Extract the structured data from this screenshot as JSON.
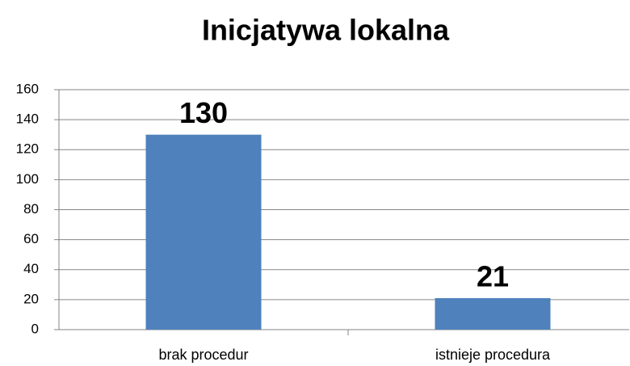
{
  "chart_data": {
    "type": "bar",
    "title": "Inicjatywa lokalna",
    "categories": [
      "brak procedur",
      "istnieje procedura"
    ],
    "values": [
      130,
      21
    ],
    "color": "#4f81bd",
    "ylim": [
      0,
      160
    ],
    "yticks": [
      0,
      20,
      40,
      60,
      80,
      100,
      120,
      140,
      160
    ],
    "grid": true
  }
}
